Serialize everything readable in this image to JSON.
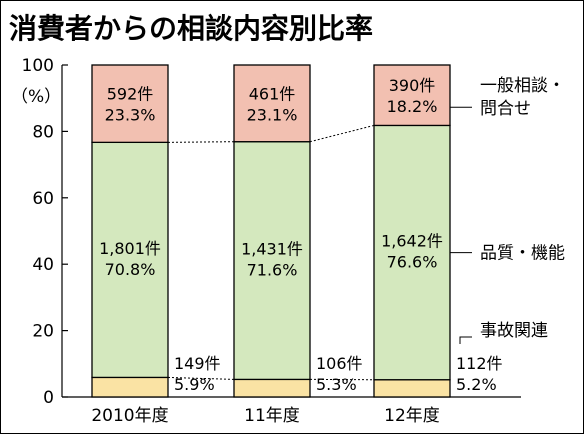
{
  "chart_data": {
    "type": "bar",
    "stacked": true,
    "title": "消費者からの相談内容別比率",
    "ylabel": "（%）",
    "ylim": [
      0,
      100
    ],
    "yticks": [
      0,
      20,
      40,
      60,
      80,
      100
    ],
    "categories": [
      "2010年度",
      "11年度",
      "12年度"
    ],
    "series": [
      {
        "name": "事故関連",
        "color": "#fae3a4",
        "counts": [
          "149件",
          "106件",
          "112件"
        ],
        "percents": [
          "5.9%",
          "5.3%",
          "5.2%"
        ],
        "values": [
          5.9,
          5.3,
          5.2
        ]
      },
      {
        "name": "品質・機能",
        "color": "#d4e8be",
        "counts": [
          "1,801件",
          "1,431件",
          "1,642件"
        ],
        "percents": [
          "70.8%",
          "71.6%",
          "76.6%"
        ],
        "values": [
          70.8,
          71.6,
          76.6
        ]
      },
      {
        "name": "一般相談・問合せ",
        "legend_lines": [
          "一般相談・",
          "問合せ"
        ],
        "color": "#f2c0b1",
        "counts": [
          "592件",
          "461件",
          "390件"
        ],
        "percents": [
          "23.3%",
          "23.1%",
          "18.2%"
        ],
        "values": [
          23.3,
          23.1,
          18.2
        ]
      }
    ],
    "grid": false,
    "legend": "right",
    "connector_lines": "dashed"
  }
}
